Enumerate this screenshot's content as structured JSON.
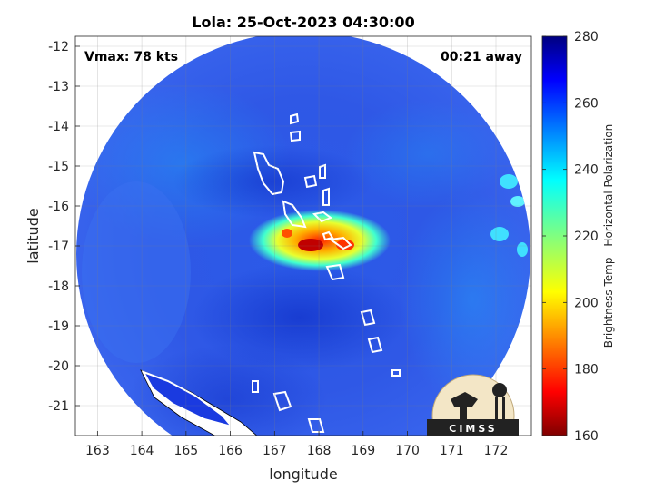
{
  "title": "Lola: 25-Oct-2023 04:30:00",
  "annotations": {
    "vmax": "Vmax: 78 kts",
    "time_away": "00:21 away"
  },
  "axes": {
    "xlabel": "longitude",
    "ylabel": "latitude",
    "xlim": [
      162.5,
      172.8
    ],
    "ylim": [
      -21.75,
      -11.75
    ],
    "xticks": [
      "163",
      "164",
      "165",
      "166",
      "167",
      "168",
      "169",
      "170",
      "171",
      "172"
    ],
    "yticks": [
      "-12",
      "-13",
      "-14",
      "-15",
      "-16",
      "-17",
      "-18",
      "-19",
      "-20",
      "-21"
    ],
    "grid": true
  },
  "colorbar": {
    "label": "Brightness Temp - Horizontal Polarization",
    "min": 160,
    "max": 280,
    "ticks": [
      "280",
      "260",
      "240",
      "220",
      "200",
      "180",
      "160"
    ],
    "colormap": "jet"
  },
  "logo": {
    "text": "CIMSS"
  },
  "colors": {
    "background": "#3050e8",
    "swath_edge": "#ffffff",
    "coast": "#ffffff"
  },
  "chart_data": {
    "type": "heatmap",
    "title": "Lola: 25-Oct-2023 04:30:00",
    "xlabel": "longitude",
    "ylabel": "latitude",
    "x_range": [
      162.5,
      172.8
    ],
    "y_range": [
      -21.75,
      -11.75
    ],
    "value_range": [
      160,
      280
    ],
    "value_label": "Brightness Temp - Horizontal Polarization",
    "storm_center": {
      "lon": 167.9,
      "lat": -17.0
    },
    "minimum_brightness_temp_approx": 170,
    "vmax_kts": 78
  }
}
